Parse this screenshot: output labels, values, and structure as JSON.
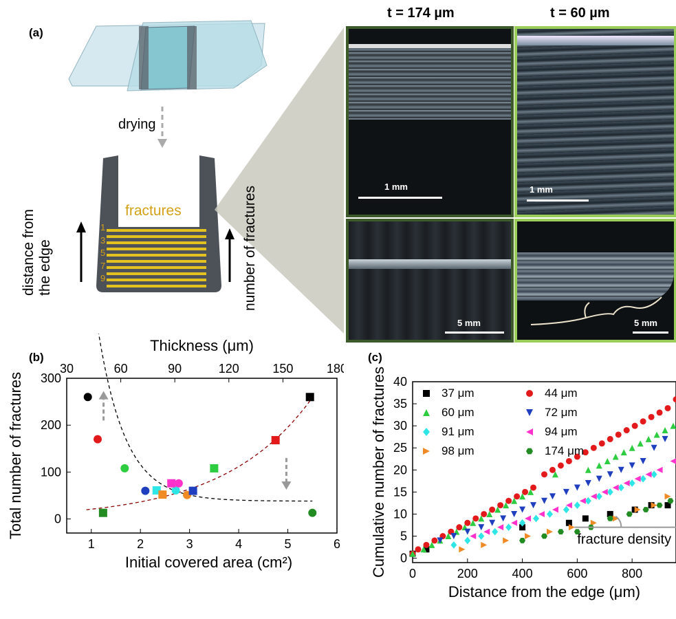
{
  "panel_a": {
    "label": "(a)",
    "drying_label": "drying",
    "fractures_label": "fractures",
    "fracture_numbers": [
      "1",
      "3",
      "5",
      "7",
      "9"
    ],
    "distance_label_line1": "distance from",
    "distance_label_line2": "the edge",
    "number_label": "number of fractures",
    "col1_title": "t = 174 µm",
    "col2_title": "t = 60 µm",
    "scale_top_left": "1 mm",
    "scale_top_right": "1 mm",
    "scale_bottom_left": "5 mm",
    "scale_bottom_right": "5 mm",
    "colors": {
      "thin_frame": "#9acd5a",
      "thick_frame": "#3c5a2a",
      "fracture": "#e3c11e",
      "film": "#4d5259"
    }
  },
  "panel_b": {
    "label": "(b)"
  },
  "panel_c": {
    "label": "(c)",
    "annotation": "fracture density"
  },
  "chart_data": [
    {
      "type": "scatter",
      "xlabel": "Initial covered area (cm²)",
      "ylabel": "Total number of fractures",
      "x2label": "Thickness (μm)",
      "xlim": [
        0.5,
        6
      ],
      "ylim": [
        -30,
        300
      ],
      "x2lim": [
        30,
        180
      ],
      "xticks": [
        "1",
        "2",
        "3",
        "4",
        "5",
        "6"
      ],
      "x2ticks": [
        "30",
        "60",
        "90",
        "120",
        "150",
        "180"
      ],
      "yticks": [
        "0",
        "100",
        "200",
        "300"
      ],
      "series": [
        {
          "marker": "circle",
          "points": [
            {
              "x": 0.93,
              "y": 260,
              "color": "#000000"
            },
            {
              "x": 1.13,
              "y": 170,
              "color": "#e31a1c"
            },
            {
              "x": 1.68,
              "y": 108,
              "color": "#2ecc40"
            },
            {
              "x": 2.1,
              "y": 60,
              "color": "#1f3fbf"
            },
            {
              "x": 2.72,
              "y": 61,
              "color": "#2ee6e6"
            },
            {
              "x": 2.78,
              "y": 76,
              "color": "#ff33cc"
            },
            {
              "x": 2.95,
              "y": 51,
              "color": "#f08a24"
            },
            {
              "x": 5.5,
              "y": 13,
              "color": "#228b22"
            }
          ]
        },
        {
          "marker": "square",
          "points": [
            {
              "x": 1.24,
              "y": 13,
              "color": "#228b22"
            },
            {
              "x": 2.33,
              "y": 61,
              "color": "#2ee6e6"
            },
            {
              "x": 2.45,
              "y": 52,
              "color": "#f08a24"
            },
            {
              "x": 2.63,
              "y": 76,
              "color": "#ff33cc"
            },
            {
              "x": 3.07,
              "y": 60,
              "color": "#1f3fbf"
            },
            {
              "x": 3.5,
              "y": 108,
              "color": "#2ecc40"
            },
            {
              "x": 4.75,
              "y": 168,
              "color": "#e31a1c"
            },
            {
              "x": 5.45,
              "y": 260,
              "color": "#000000"
            }
          ]
        }
      ],
      "fit_curves": [
        {
          "color": "#000000",
          "a": 38,
          "b": 560,
          "k": 1.28
        },
        {
          "color": "#8b0000",
          "a": 11.9,
          "k": 0.56
        }
      ],
      "arrows": [
        {
          "x": 1.25,
          "y_from": 210,
          "y_to": 255,
          "color": "#999999"
        },
        {
          "x": 4.97,
          "y_from": 130,
          "y_to": 80,
          "color": "#999999"
        }
      ]
    },
    {
      "type": "scatter",
      "xlabel": "Distance from the edge (μm)",
      "ylabel": "Cumulative number of fractures",
      "xlim": [
        0,
        960
      ],
      "ylim": [
        -1,
        40
      ],
      "xticks": [
        "0",
        "200",
        "400",
        "600",
        "800"
      ],
      "yticks": [
        "0",
        "5",
        "10",
        "15",
        "20",
        "25",
        "30",
        "35",
        "40"
      ],
      "legend": "top-left",
      "series": [
        {
          "name": "37 μm",
          "marker": "square",
          "color": "#000000",
          "x": [
            0,
            50,
            400,
            570,
            630,
            720,
            810,
            870,
            930
          ],
          "y": [
            1,
            2,
            7,
            8,
            9,
            10,
            11,
            12,
            12
          ]
        },
        {
          "name": "44 μm",
          "marker": "circle",
          "color": "#e31a1c",
          "x": [
            0,
            20,
            50,
            80,
            110,
            140,
            170,
            200,
            230,
            260,
            290,
            320,
            350,
            380,
            410,
            440,
            480,
            510,
            540,
            570,
            600,
            630,
            660,
            690,
            720,
            750,
            780,
            810,
            840,
            870,
            900,
            930,
            960
          ],
          "y": [
            1,
            2,
            3,
            4,
            5,
            6,
            7,
            8,
            9,
            10,
            11,
            12,
            13,
            14,
            15,
            16,
            19,
            20,
            21,
            22,
            23,
            24,
            25,
            26,
            27,
            28,
            29,
            30,
            31,
            32,
            33,
            34,
            36
          ]
        },
        {
          "name": "60 μm",
          "marker": "triangle-up",
          "color": "#2ecc40",
          "x": [
            0,
            40,
            70,
            100,
            130,
            160,
            190,
            220,
            250,
            280,
            310,
            340,
            370,
            400,
            430,
            520,
            640,
            680,
            710,
            740,
            770,
            800,
            830,
            860,
            890,
            920,
            950
          ],
          "y": [
            1,
            2,
            3,
            4,
            5,
            6,
            7,
            8,
            9,
            10,
            11,
            12,
            13,
            14,
            15,
            19,
            20,
            21,
            22,
            23,
            24,
            25,
            26,
            27,
            28,
            29,
            30
          ]
        },
        {
          "name": "72 μm",
          "marker": "triangle-down",
          "color": "#1f3fbf",
          "x": [
            100,
            150,
            200,
            250,
            290,
            330,
            370,
            400,
            440,
            480,
            510,
            560,
            600,
            640,
            680,
            720,
            760,
            800,
            840,
            880,
            920
          ],
          "y": [
            4,
            5,
            6,
            7,
            8,
            9,
            10,
            11,
            12,
            13,
            14,
            15,
            16,
            17,
            18,
            19,
            20,
            21,
            22,
            25,
            27
          ]
        },
        {
          "name": "91 μm",
          "marker": "diamond",
          "color": "#2ee6e6",
          "x": [
            150,
            200,
            250,
            300,
            350,
            400,
            450,
            500,
            560,
            600,
            640,
            680,
            720,
            760,
            800,
            840,
            880
          ],
          "y": [
            3,
            4,
            5,
            6,
            7,
            8,
            9,
            10,
            11,
            12,
            13,
            14,
            15,
            16,
            17,
            18,
            19
          ]
        },
        {
          "name": "94 μm",
          "marker": "triangle-left",
          "color": "#ff33cc",
          "x": [
            220,
            270,
            320,
            370,
            420,
            470,
            520,
            570,
            620,
            660,
            700,
            740,
            780,
            820,
            860,
            900,
            950
          ],
          "y": [
            5,
            6,
            7,
            8,
            9,
            10,
            11,
            12,
            13,
            14,
            15,
            16,
            17,
            18,
            19,
            20,
            22
          ]
        },
        {
          "name": "98 μm",
          "marker": "triangle-right",
          "color": "#f08a24",
          "x": [
            180,
            260,
            340,
            420,
            500,
            580,
            660,
            740,
            820,
            880,
            930
          ],
          "y": [
            2,
            3,
            4,
            5,
            6,
            7,
            8,
            9,
            11,
            12,
            14
          ]
        },
        {
          "name": "174 μm",
          "marker": "hexagon",
          "color": "#228b22",
          "x": [
            400,
            480,
            540,
            600,
            650,
            720,
            790,
            850,
            900,
            940
          ],
          "y": [
            4,
            5,
            6,
            6,
            7,
            9,
            10,
            11,
            12,
            13
          ]
        }
      ],
      "annotation_line": {
        "x_from": 590,
        "x_to": 960,
        "y": 7,
        "color": "#999999"
      }
    }
  ]
}
